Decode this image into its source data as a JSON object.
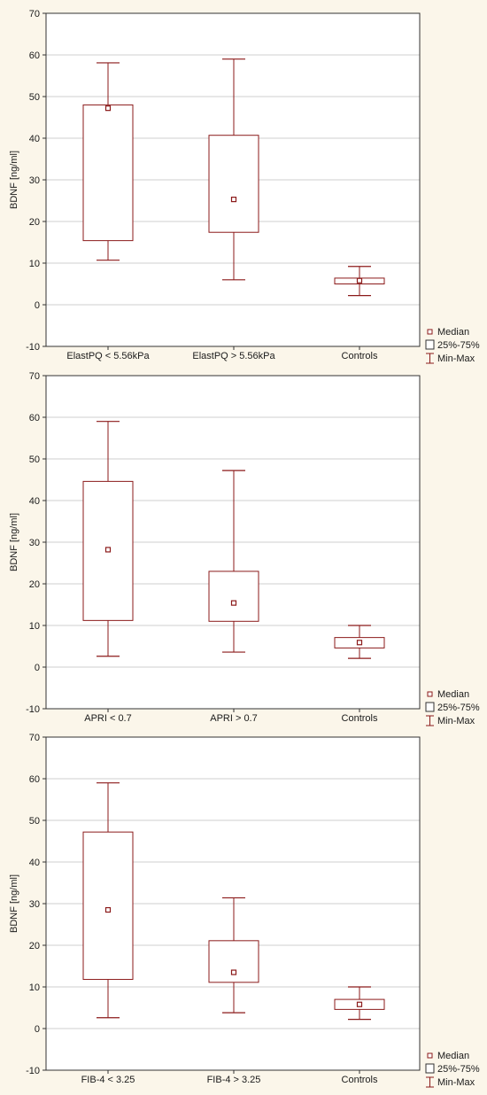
{
  "chart_data": [
    {
      "type": "box",
      "ylabel": "BDNF [ng/ml]",
      "ylim": [
        -10,
        70
      ],
      "yticks": [
        -10,
        0,
        10,
        20,
        30,
        40,
        50,
        60,
        70
      ],
      "grid": true,
      "legend_position": "bottom-right",
      "categories": [
        "ElastPQ < 5.56kPa",
        "ElastPQ > 5.56kPa",
        "Controls"
      ],
      "boxes": [
        {
          "min": 10.7,
          "q1": 15.4,
          "median": 47.2,
          "q3": 48.0,
          "max": 58.1
        },
        {
          "min": 6.0,
          "q1": 17.4,
          "median": 25.3,
          "q3": 40.7,
          "max": 59.0
        },
        {
          "min": 2.2,
          "q1": 5.0,
          "median": 5.8,
          "q3": 6.4,
          "max": 9.2
        }
      ],
      "legend": [
        "Median",
        "25%-75%",
        "Min-Max"
      ]
    },
    {
      "type": "box",
      "ylabel": "BDNF [ng/ml]",
      "ylim": [
        -10,
        70
      ],
      "yticks": [
        -10,
        0,
        10,
        20,
        30,
        40,
        50,
        60,
        70
      ],
      "grid": true,
      "legend_position": "bottom-right",
      "categories": [
        "APRI < 0.7",
        "APRI > 0.7",
        "Controls"
      ],
      "boxes": [
        {
          "min": 2.6,
          "q1": 11.2,
          "median": 28.2,
          "q3": 44.6,
          "max": 59.0
        },
        {
          "min": 3.6,
          "q1": 11.0,
          "median": 15.4,
          "q3": 23.0,
          "max": 47.2
        },
        {
          "min": 2.1,
          "q1": 4.6,
          "median": 5.9,
          "q3": 7.1,
          "max": 10.0
        }
      ],
      "legend": [
        "Median",
        "25%-75%",
        "Min-Max"
      ]
    },
    {
      "type": "box",
      "ylabel": "BDNF [ng/ml]",
      "ylim": [
        -10,
        70
      ],
      "yticks": [
        -10,
        0,
        10,
        20,
        30,
        40,
        50,
        60,
        70
      ],
      "grid": true,
      "legend_position": "bottom-right",
      "categories": [
        "FIB-4 < 3.25",
        "FIB-4 > 3.25",
        "Controls"
      ],
      "boxes": [
        {
          "min": 2.6,
          "q1": 11.8,
          "median": 28.5,
          "q3": 47.2,
          "max": 59.0
        },
        {
          "min": 3.8,
          "q1": 11.1,
          "median": 13.5,
          "q3": 21.1,
          "max": 31.4
        },
        {
          "min": 2.2,
          "q1": 4.6,
          "median": 5.8,
          "q3": 7.0,
          "max": 10.0
        }
      ],
      "legend": [
        "Median",
        "25%-75%",
        "Min-Max"
      ]
    }
  ],
  "colors": {
    "background": "#fbf6ea",
    "plot_area": "#ffffff",
    "box_stroke": "#8b1a1a",
    "grid": "#cfcfcf",
    "axis": "#333333"
  }
}
